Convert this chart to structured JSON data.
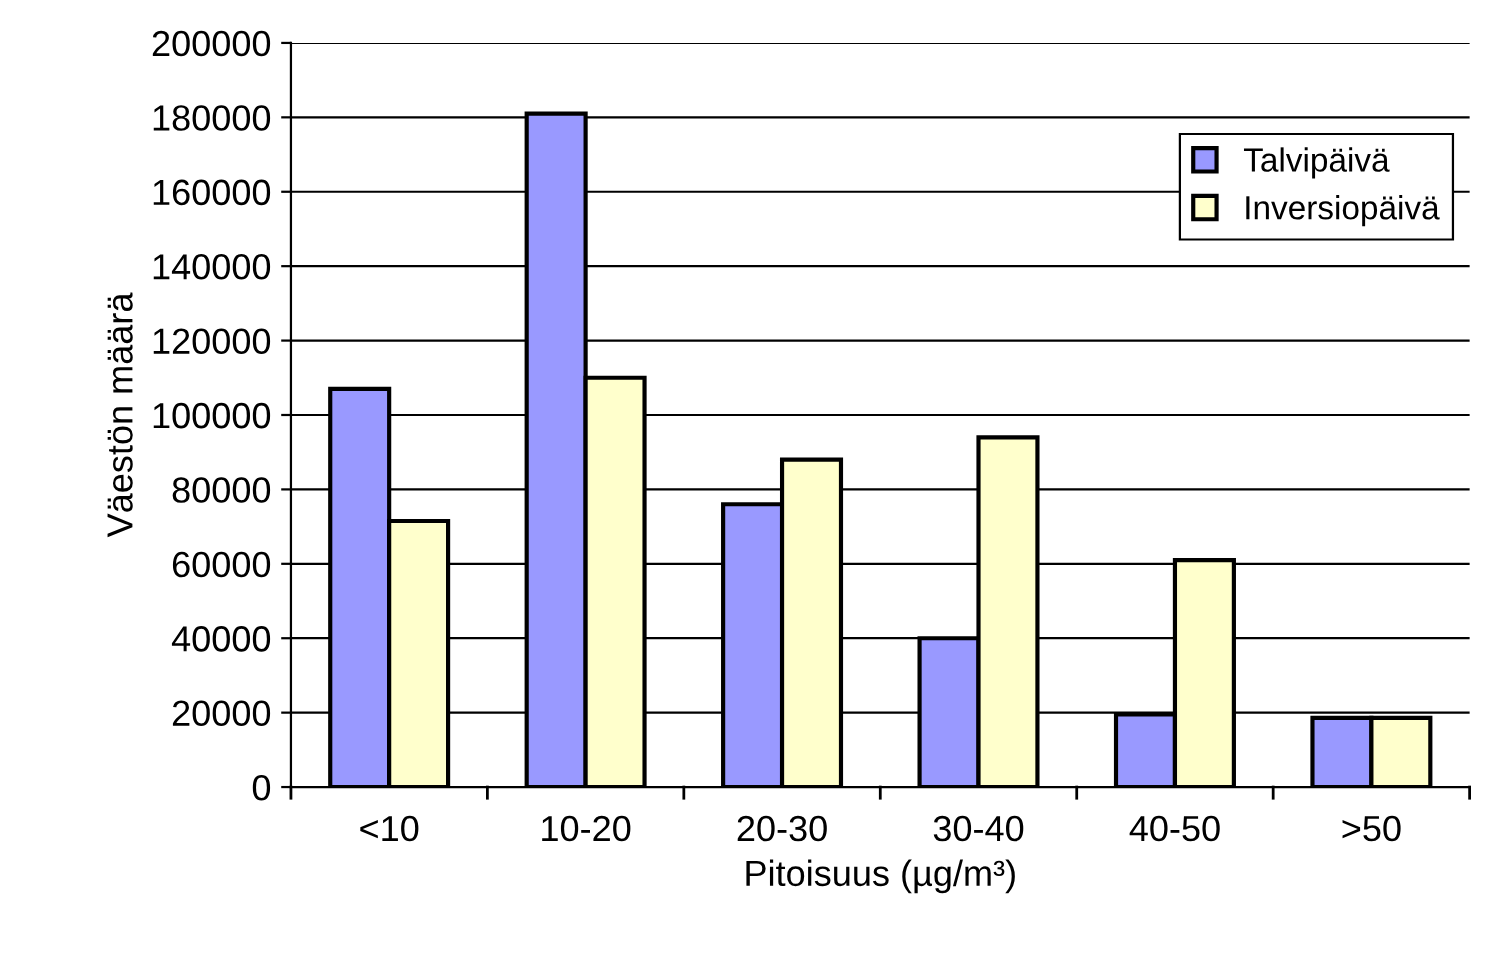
{
  "chart_data": {
    "type": "bar",
    "xlabel": "Pitoisuus (µg/m³)",
    "ylabel": "Väestön määrä",
    "categories": [
      "<10",
      "10-20",
      "20-30",
      "30-40",
      "40-50",
      ">50"
    ],
    "series": [
      {
        "name": "Talvipäivä",
        "color": "#9999ff",
        "values": [
          107000,
          181000,
          76000,
          40000,
          19500,
          18600
        ]
      },
      {
        "name": "Inversiopäivä",
        "color": "#ffffcc",
        "values": [
          71500,
          110000,
          88000,
          94000,
          61000,
          18600
        ]
      }
    ],
    "ylim": [
      0,
      200000
    ],
    "yticks": [
      0,
      20000,
      40000,
      60000,
      80000,
      100000,
      120000,
      140000,
      160000,
      180000,
      200000
    ],
    "grid": "y",
    "legend": "top right"
  }
}
